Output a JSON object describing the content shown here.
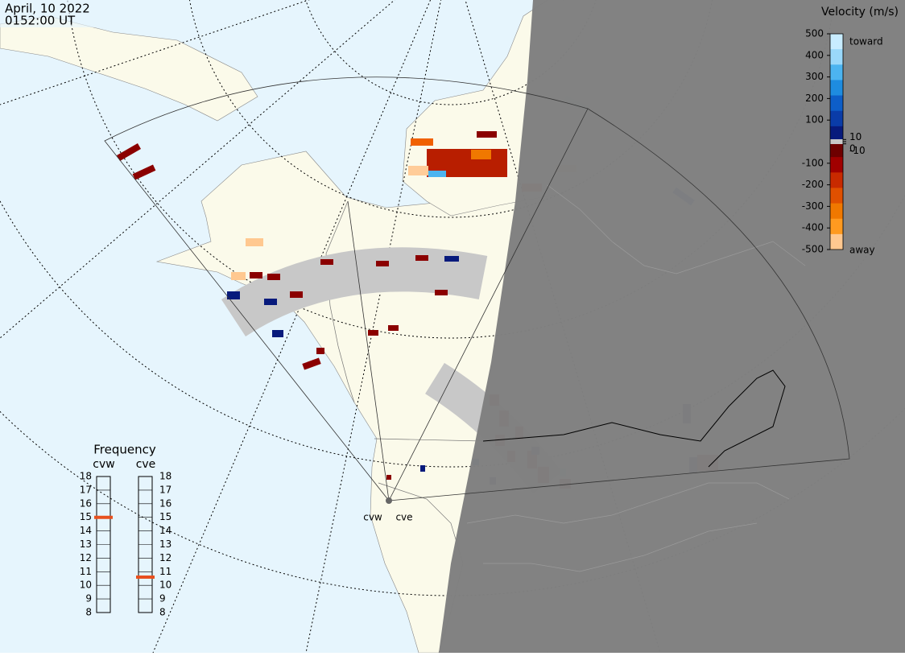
{
  "header": {
    "date": "April, 10 2022",
    "time": "0152:00 UT"
  },
  "colorbar": {
    "title": "Velocity (m/s)",
    "toward": "toward",
    "away": "away",
    "ticks": [
      500,
      400,
      300,
      200,
      100,
      10,
      0,
      -10,
      -100,
      -200,
      -300,
      -400,
      -500
    ],
    "lim": [
      -500,
      500
    ]
  },
  "frequency": {
    "title": "Frequency",
    "lim": [
      8,
      18
    ],
    "ticks": [
      18,
      17,
      16,
      15,
      14,
      13,
      12,
      11,
      10,
      9,
      8
    ],
    "radars": [
      {
        "name": "cvw",
        "value": 15
      },
      {
        "name": "cve",
        "value": 10.6
      }
    ]
  },
  "map": {
    "sites": [
      "cvw",
      "cve"
    ]
  }
}
